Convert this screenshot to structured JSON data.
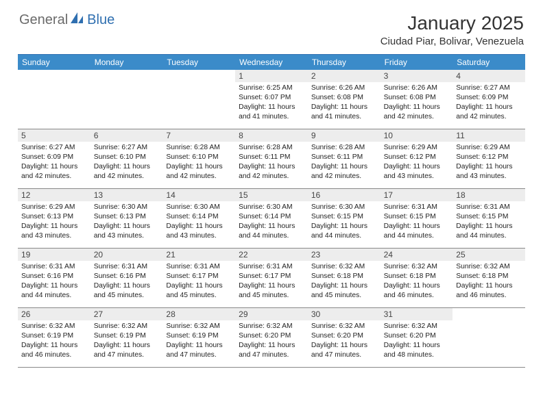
{
  "logo": {
    "part1": "General",
    "part2": "Blue"
  },
  "title": "January 2025",
  "location": "Ciudad Piar, Bolivar, Venezuela",
  "colors": {
    "header_bg": "#3b8bc9",
    "border_top": "#2f6fb0",
    "daynum_bg": "#ededed",
    "logo_gray": "#6a6a6a",
    "logo_blue": "#2f6fb0"
  },
  "day_names": [
    "Sunday",
    "Monday",
    "Tuesday",
    "Wednesday",
    "Thursday",
    "Friday",
    "Saturday"
  ],
  "weeks": [
    [
      {
        "day": "",
        "sunrise": "",
        "sunset": "",
        "daylight": ""
      },
      {
        "day": "",
        "sunrise": "",
        "sunset": "",
        "daylight": ""
      },
      {
        "day": "",
        "sunrise": "",
        "sunset": "",
        "daylight": ""
      },
      {
        "day": "1",
        "sunrise": "Sunrise: 6:25 AM",
        "sunset": "Sunset: 6:07 PM",
        "daylight": "Daylight: 11 hours and 41 minutes."
      },
      {
        "day": "2",
        "sunrise": "Sunrise: 6:26 AM",
        "sunset": "Sunset: 6:08 PM",
        "daylight": "Daylight: 11 hours and 41 minutes."
      },
      {
        "day": "3",
        "sunrise": "Sunrise: 6:26 AM",
        "sunset": "Sunset: 6:08 PM",
        "daylight": "Daylight: 11 hours and 42 minutes."
      },
      {
        "day": "4",
        "sunrise": "Sunrise: 6:27 AM",
        "sunset": "Sunset: 6:09 PM",
        "daylight": "Daylight: 11 hours and 42 minutes."
      }
    ],
    [
      {
        "day": "5",
        "sunrise": "Sunrise: 6:27 AM",
        "sunset": "Sunset: 6:09 PM",
        "daylight": "Daylight: 11 hours and 42 minutes."
      },
      {
        "day": "6",
        "sunrise": "Sunrise: 6:27 AM",
        "sunset": "Sunset: 6:10 PM",
        "daylight": "Daylight: 11 hours and 42 minutes."
      },
      {
        "day": "7",
        "sunrise": "Sunrise: 6:28 AM",
        "sunset": "Sunset: 6:10 PM",
        "daylight": "Daylight: 11 hours and 42 minutes."
      },
      {
        "day": "8",
        "sunrise": "Sunrise: 6:28 AM",
        "sunset": "Sunset: 6:11 PM",
        "daylight": "Daylight: 11 hours and 42 minutes."
      },
      {
        "day": "9",
        "sunrise": "Sunrise: 6:28 AM",
        "sunset": "Sunset: 6:11 PM",
        "daylight": "Daylight: 11 hours and 42 minutes."
      },
      {
        "day": "10",
        "sunrise": "Sunrise: 6:29 AM",
        "sunset": "Sunset: 6:12 PM",
        "daylight": "Daylight: 11 hours and 43 minutes."
      },
      {
        "day": "11",
        "sunrise": "Sunrise: 6:29 AM",
        "sunset": "Sunset: 6:12 PM",
        "daylight": "Daylight: 11 hours and 43 minutes."
      }
    ],
    [
      {
        "day": "12",
        "sunrise": "Sunrise: 6:29 AM",
        "sunset": "Sunset: 6:13 PM",
        "daylight": "Daylight: 11 hours and 43 minutes."
      },
      {
        "day": "13",
        "sunrise": "Sunrise: 6:30 AM",
        "sunset": "Sunset: 6:13 PM",
        "daylight": "Daylight: 11 hours and 43 minutes."
      },
      {
        "day": "14",
        "sunrise": "Sunrise: 6:30 AM",
        "sunset": "Sunset: 6:14 PM",
        "daylight": "Daylight: 11 hours and 43 minutes."
      },
      {
        "day": "15",
        "sunrise": "Sunrise: 6:30 AM",
        "sunset": "Sunset: 6:14 PM",
        "daylight": "Daylight: 11 hours and 44 minutes."
      },
      {
        "day": "16",
        "sunrise": "Sunrise: 6:30 AM",
        "sunset": "Sunset: 6:15 PM",
        "daylight": "Daylight: 11 hours and 44 minutes."
      },
      {
        "day": "17",
        "sunrise": "Sunrise: 6:31 AM",
        "sunset": "Sunset: 6:15 PM",
        "daylight": "Daylight: 11 hours and 44 minutes."
      },
      {
        "day": "18",
        "sunrise": "Sunrise: 6:31 AM",
        "sunset": "Sunset: 6:15 PM",
        "daylight": "Daylight: 11 hours and 44 minutes."
      }
    ],
    [
      {
        "day": "19",
        "sunrise": "Sunrise: 6:31 AM",
        "sunset": "Sunset: 6:16 PM",
        "daylight": "Daylight: 11 hours and 44 minutes."
      },
      {
        "day": "20",
        "sunrise": "Sunrise: 6:31 AM",
        "sunset": "Sunset: 6:16 PM",
        "daylight": "Daylight: 11 hours and 45 minutes."
      },
      {
        "day": "21",
        "sunrise": "Sunrise: 6:31 AM",
        "sunset": "Sunset: 6:17 PM",
        "daylight": "Daylight: 11 hours and 45 minutes."
      },
      {
        "day": "22",
        "sunrise": "Sunrise: 6:31 AM",
        "sunset": "Sunset: 6:17 PM",
        "daylight": "Daylight: 11 hours and 45 minutes."
      },
      {
        "day": "23",
        "sunrise": "Sunrise: 6:32 AM",
        "sunset": "Sunset: 6:18 PM",
        "daylight": "Daylight: 11 hours and 45 minutes."
      },
      {
        "day": "24",
        "sunrise": "Sunrise: 6:32 AM",
        "sunset": "Sunset: 6:18 PM",
        "daylight": "Daylight: 11 hours and 46 minutes."
      },
      {
        "day": "25",
        "sunrise": "Sunrise: 6:32 AM",
        "sunset": "Sunset: 6:18 PM",
        "daylight": "Daylight: 11 hours and 46 minutes."
      }
    ],
    [
      {
        "day": "26",
        "sunrise": "Sunrise: 6:32 AM",
        "sunset": "Sunset: 6:19 PM",
        "daylight": "Daylight: 11 hours and 46 minutes."
      },
      {
        "day": "27",
        "sunrise": "Sunrise: 6:32 AM",
        "sunset": "Sunset: 6:19 PM",
        "daylight": "Daylight: 11 hours and 47 minutes."
      },
      {
        "day": "28",
        "sunrise": "Sunrise: 6:32 AM",
        "sunset": "Sunset: 6:19 PM",
        "daylight": "Daylight: 11 hours and 47 minutes."
      },
      {
        "day": "29",
        "sunrise": "Sunrise: 6:32 AM",
        "sunset": "Sunset: 6:20 PM",
        "daylight": "Daylight: 11 hours and 47 minutes."
      },
      {
        "day": "30",
        "sunrise": "Sunrise: 6:32 AM",
        "sunset": "Sunset: 6:20 PM",
        "daylight": "Daylight: 11 hours and 47 minutes."
      },
      {
        "day": "31",
        "sunrise": "Sunrise: 6:32 AM",
        "sunset": "Sunset: 6:20 PM",
        "daylight": "Daylight: 11 hours and 48 minutes."
      },
      {
        "day": "",
        "sunrise": "",
        "sunset": "",
        "daylight": ""
      }
    ]
  ]
}
